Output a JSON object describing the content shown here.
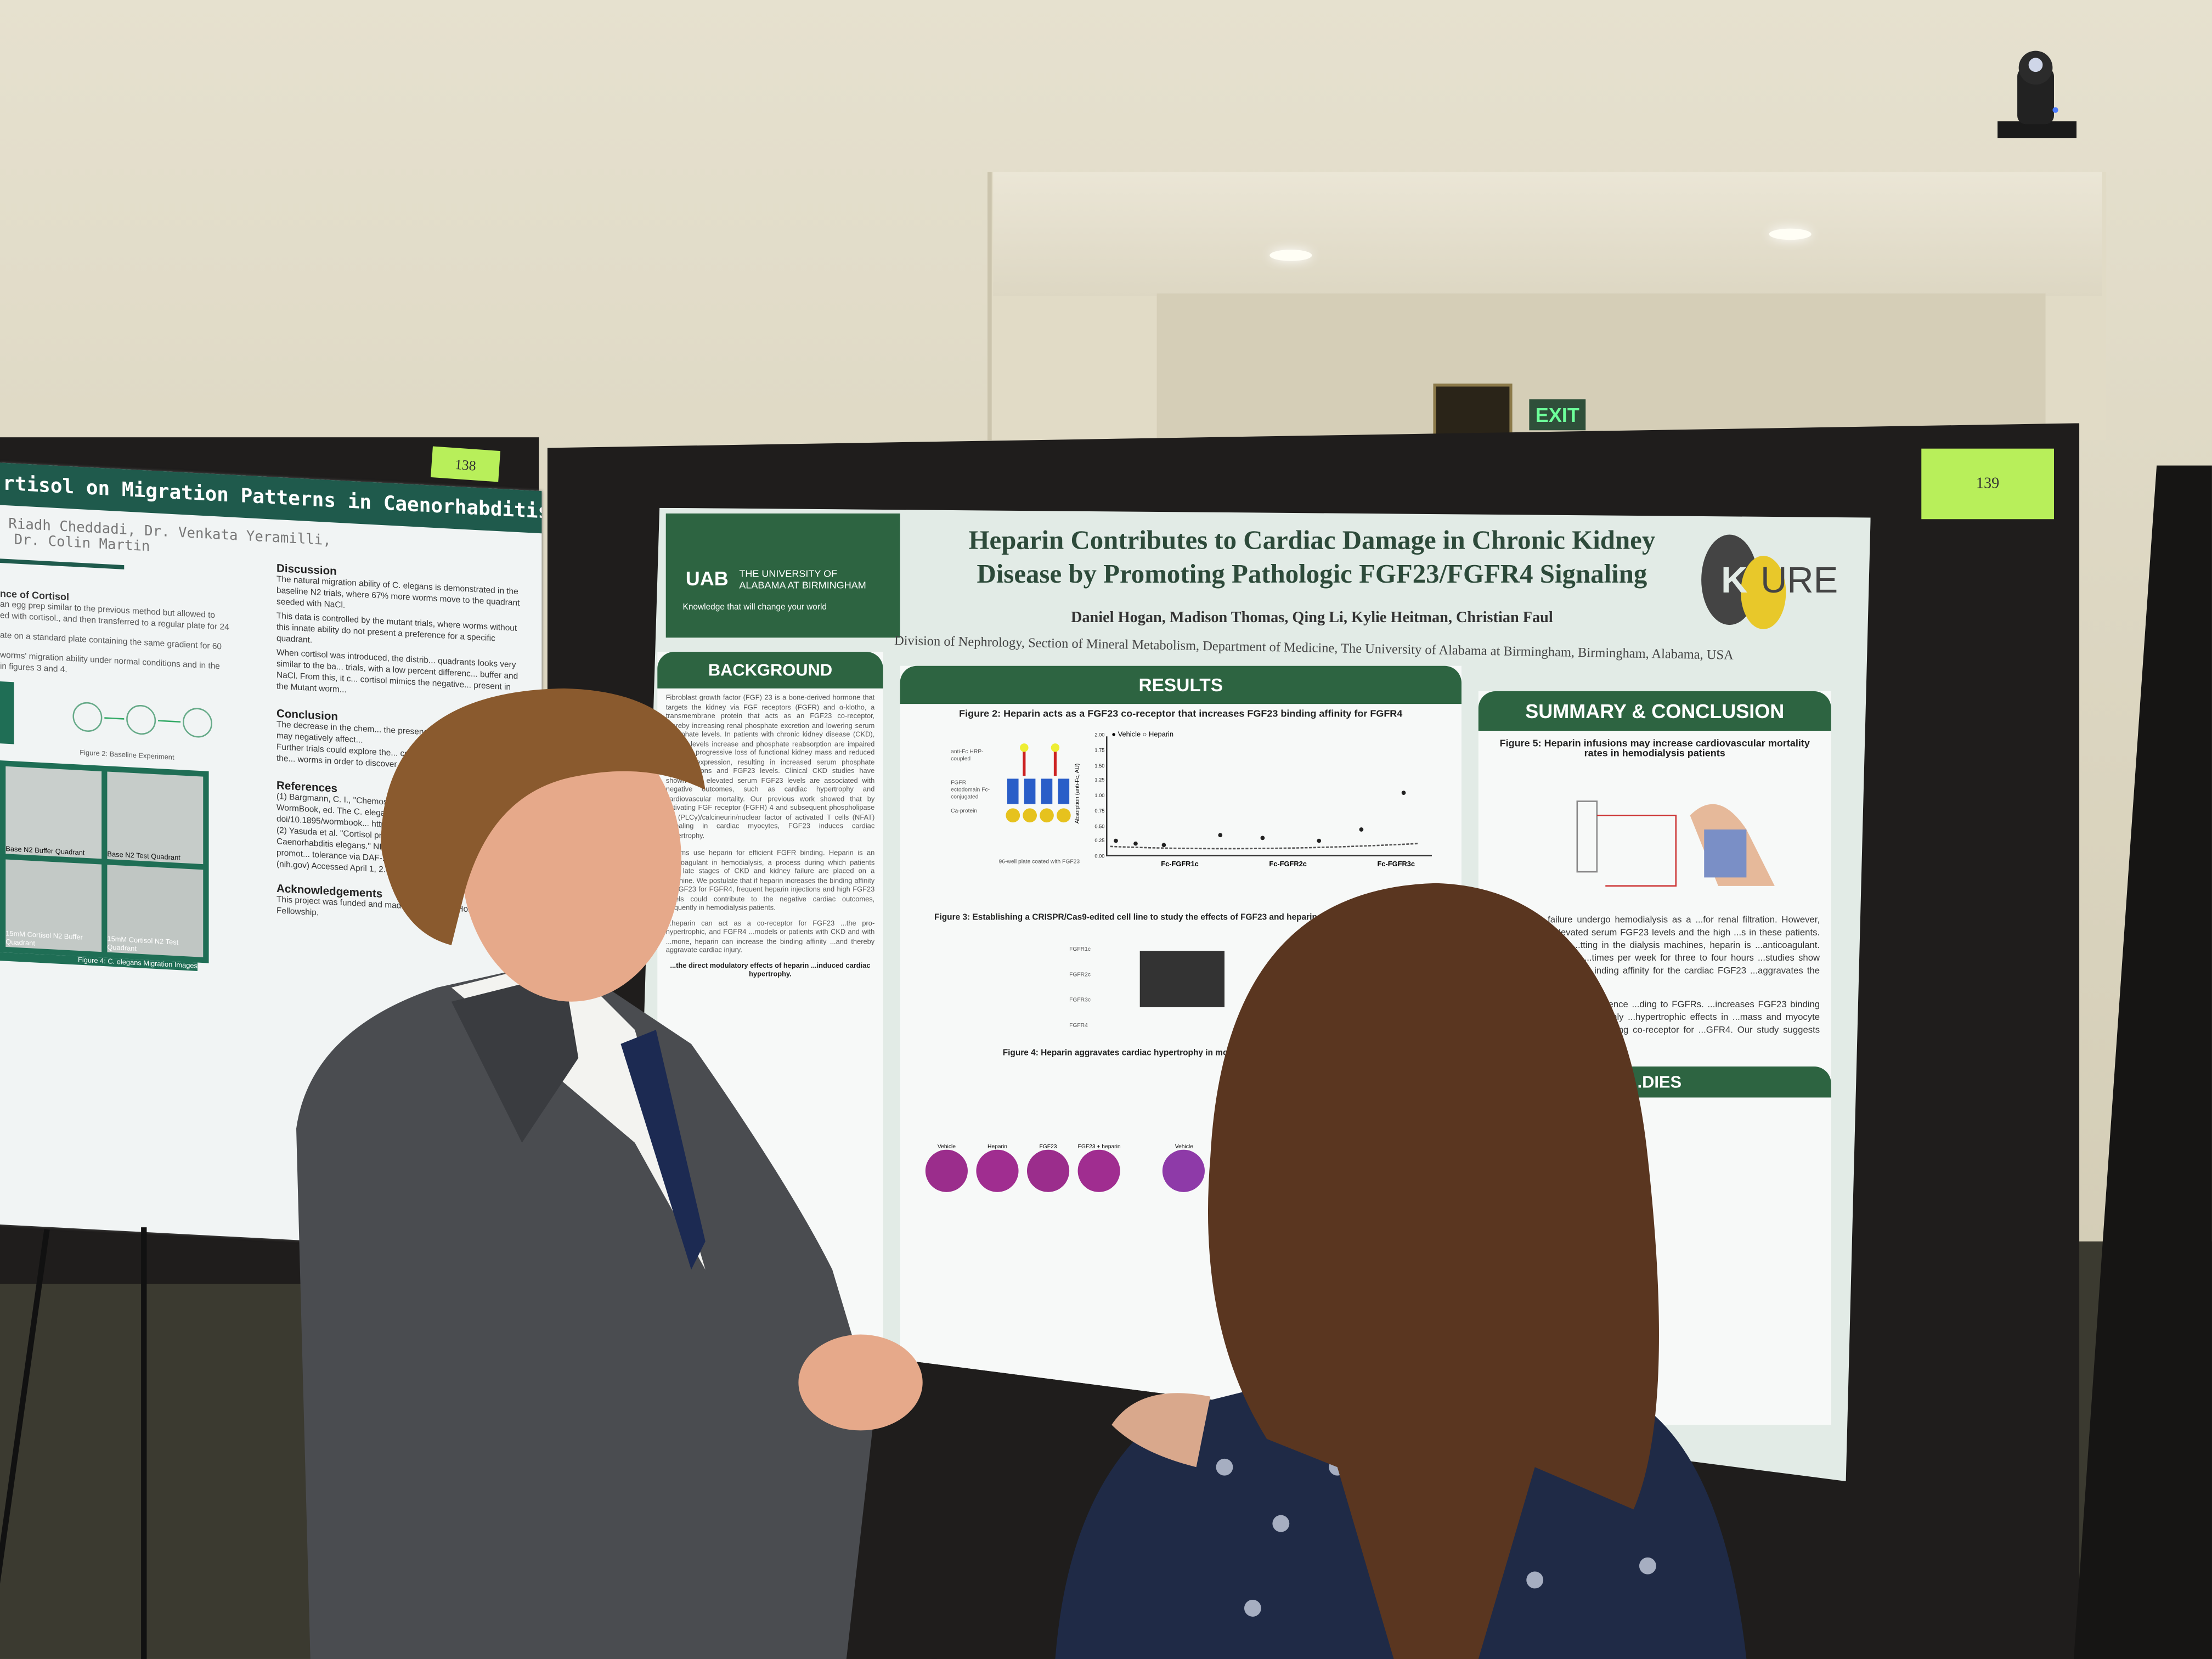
{
  "room": {
    "exit_sign": "EXIT"
  },
  "left_poster": {
    "tag_number": "138",
    "title": "rtisol on Migration Patterns in Caenorhabditis elegans",
    "authors_line1": "Riadh Cheddadi, Dr. Venkata Yeramilli,",
    "authors_line2": "Dr. Colin Martin",
    "methods_heading": "nce of Cortisol",
    "methods_text": [
      "an egg prep similar to the previous method but allowed to",
      "ed with cortisol., and then transferred to a regular plate for 24",
      "ate on a standard plate containing the same gradient for 60",
      "worms' migration ability under normal conditions and in the",
      "in figures 3 and 4."
    ],
    "figure2_caption": "Figure 2: Baseline Experiment",
    "image_labels": [
      "Base N2 Buffer Quadrant",
      "Base N2 Test Quadrant",
      "15mM Cortisol N2 Buffer Quadrant",
      "15mM Cortisol N2 Test Quadrant"
    ],
    "figure4_caption": "Figure 4: C. elegans Migration Images",
    "discussion_heading": "Discussion",
    "discussion_bullets": [
      "The natural migration ability of C. elegans is demonstrated in the baseline N2 trials, where 67% more worms move to the quadrant seeded with NaCl.",
      "This data is controlled by the mutant trials, where worms without this innate ability do not present a preference for a specific quadrant.",
      "When cortisol was introduced, the distrib... quadrants looks very similar to the ba... trials, with a low percent differenc... buffer and NaCl. From this, it c... cortisol mimics the negative... present in the Mutant worm..."
    ],
    "conclusion_heading": "Conclusion",
    "conclusion_bullets": [
      "The decrease in the chem... the presence of cortisol su... stress may negatively affect...",
      "Further trials could explore the... cortisol levels could explore the... worms in order to discover any... that may occur."
    ],
    "references_heading": "References",
    "references_text": [
      "(1) Bargmann, C. I., \"Chemosensation in C. el... (June 25, 2005), WormBook, ed. The C. elegans... Community, WormBook, doi/10.1895/wormbook... http://www.wormbook.org",
      "(2) Yasuda et al. \"Cortisol promotes stress tol... DAF-16 in Caenorhabditis elegans.\" NIH: ... of Medicine, July 2021. Cortisol promot... tolerance via DAF-16 in Caenorhabdi... PubMed (nih.gov) Accessed April 1, 2..."
    ],
    "acknowledgements_heading": "Acknowledgements",
    "acknowledgements_text": "This project was funded and mad... Presidential Honors Fellowship."
  },
  "main_poster": {
    "tag_number": "139",
    "uab_logo": {
      "mark": "UAB",
      "line1": "THE UNIVERSITY OF",
      "line2": "ALABAMA AT BIRMINGHAM",
      "tagline": "Knowledge that will change your world"
    },
    "kure_logo": "KURE",
    "title_line1": "Heparin Contributes to Cardiac Damage in Chronic Kidney",
    "title_line2": "Disease by Promoting Pathologic FGF23/FGFR4 Signaling",
    "authors": "Daniel Hogan, Madison Thomas, Qing Li, Kylie Heitman, Christian Faul",
    "affiliation": "Division of Nephrology, Section of Mineral Metabolism, Department of Medicine, The University of Alabama at Birmingham, Birmingham, Alabama, USA",
    "background": {
      "heading": "BACKGROUND",
      "text": "Fibroblast growth factor (FGF) 23 is a bone-derived hormone that targets the kidney via FGF receptors (FGFR) and α-klotho, a transmembrane protein that acts as an FGF23 co-receptor, thereby increasing renal phosphate excretion and lowering serum phosphate levels. In patients with chronic kidney disease (CKD), FGF23 levels increase and phosphate reabsorption are impaired due to a progressive loss of functional kidney mass and reduced α-klotho expression, resulting in increased serum phosphate concentrations and FGF23 levels. Clinical CKD studies have shown that elevated serum FGF23 levels are associated with negative outcomes, such as cardiac hypertrophy and cardiovascular mortality. Our previous work showed that by activating FGF receptor (FGFR) 4 and subsequent phospholipase Cγ (PLCγ)/calcineurin/nuclear factor of activated T cells (NFAT) signaling in cardiac myocytes, FGF23 induces cardiac hypertrophy.",
      "text2": "...forms use heparin for efficient FGFR binding. Heparin is an anticoagulant in hemodialysis, a process during which patients with late stages of CKD and kidney failure are placed on a machine. We postulate that if heparin increases the binding affinity of FGF23 for FGFR4, frequent heparin injections and high FGF23 levels could contribute to the negative cardiac outcomes, frequently in hemodialysis patients.",
      "text3": "...heparin can act as a co-receptor for FGF23 ...the pro-hypertrophic, and FGFR4 ...models or patients with CKD and with ...mone, heparin can increase the binding affinity ...and thereby aggravate cardiac injury.",
      "figure_caption": "...the direct modulatory effects of heparin ...induced cardiac hypertrophy."
    },
    "results": {
      "heading": "RESULTS",
      "figure2_caption": "Figure 2: Heparin acts as a FGF23 co-receptor that increases FGF23 binding affinity for FGFR4",
      "figure2_legend": [
        "Vehicle",
        "Heparin"
      ],
      "figure2_ylabel": "Absorption (anti-Fc, AU)",
      "figure2_yticks": [
        "2.00",
        "1.75",
        "1.50",
        "1.25",
        "1.00",
        "0.75",
        "0.50",
        "0.25",
        "0.00"
      ],
      "figure2_groups": [
        "Fc-FGFR1c",
        "Fc-FGFR2c",
        "Fc-FGFR3c"
      ],
      "figure2_diagram_labels": [
        "anti-Fc HRP-coupled",
        "FGFR ectodomain Fc-conjugated",
        "Ca-protein",
        "96-well plate coated with FGF23"
      ],
      "figure3_caption": "Figure 3: Establishing a CRISPR/Cas9-edited cell line to study the effects of FGF23 and heparin on specific FGFR isoforms",
      "figure3_labels": [
        "FGFR1c",
        "FGFR2c",
        "FGFR3c",
        "FGFR4"
      ],
      "figure4_caption": "Figure 4: Heparin aggravates cardiac hypertrophy in mouse models with elevated FGF23",
      "figure4_labels": [
        "Vehicle",
        "Heparin",
        "FGF23",
        "FGF23 + heparin",
        "Vehicle"
      ]
    },
    "summary": {
      "heading": "SUMMARY & CONCLUSION",
      "figure5_caption": "Figure 5: Heparin infusions may increase cardiovascular mortality rates in hemodialysis patients",
      "text": "...and kidney failure undergo hemodialysis as a ...for renal filtration. However, hemodialysis ...elevated serum FGF23 levels and the high ...s in these patients. To maintain proper ...tting in the dialysis machines, heparin is ...anticoagulant. Hemodialysis patients ...times per week for three to four hours ...studies show that heparin acts as a ...inding affinity for the cardiac FGF23 ...aggravates the pathologic actions",
      "text2": "...co-receptor that in the absence ...ding to FGFRs. ...increases FGF23 binding ...rms, heparin seems to mainly ...hypertrophic effects in ...mass and myocyte area in ...elevations. ...circulating co-receptor for ...GFR4. Our study suggests ...agulant, heparin acts as a",
      "future_heading": "...DIES"
    }
  }
}
